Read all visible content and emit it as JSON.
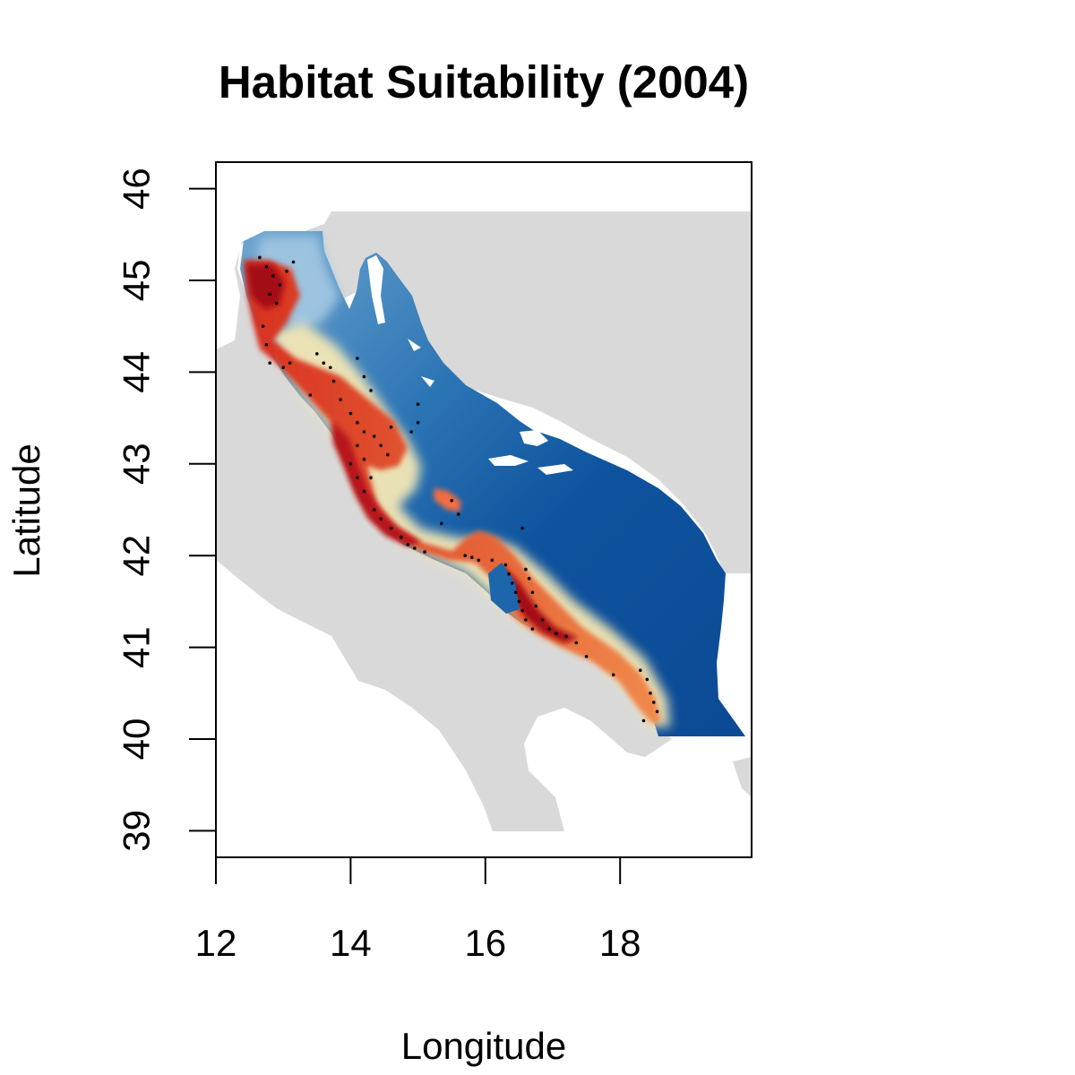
{
  "map": {
    "title": "Habitat Suitability (2004)",
    "xlabel": "Longitude",
    "ylabel": "Latitude",
    "xlim": [
      12,
      20
    ],
    "ylim": [
      38.7,
      46.3
    ],
    "x_ticks": [
      12,
      14,
      16,
      18
    ],
    "y_ticks": [
      39,
      40,
      41,
      42,
      43,
      44,
      45,
      46
    ],
    "colors": {
      "land": "#d9d9d9",
      "low_suitability": "#0b4f9b",
      "mid_suitability": "#f2ecc0",
      "high_suitability": "#a50f15"
    },
    "occurrence_points": [
      [
        12.65,
        45.25
      ],
      [
        12.75,
        45.15
      ],
      [
        12.85,
        45.05
      ],
      [
        12.95,
        44.95
      ],
      [
        12.8,
        44.85
      ],
      [
        12.9,
        44.75
      ],
      [
        13.05,
        45.1
      ],
      [
        13.15,
        45.2
      ],
      [
        12.7,
        44.5
      ],
      [
        12.75,
        44.3
      ],
      [
        12.8,
        44.1
      ],
      [
        13.0,
        44.05
      ],
      [
        13.1,
        44.1
      ],
      [
        13.5,
        44.2
      ],
      [
        13.6,
        44.1
      ],
      [
        13.7,
        44.05
      ],
      [
        13.75,
        43.9
      ],
      [
        13.85,
        43.7
      ],
      [
        14.1,
        44.15
      ],
      [
        14.2,
        43.95
      ],
      [
        14.3,
        43.8
      ],
      [
        13.4,
        43.75
      ],
      [
        14.0,
        43.55
      ],
      [
        14.1,
        43.45
      ],
      [
        14.2,
        43.35
      ],
      [
        14.35,
        43.3
      ],
      [
        14.45,
        43.2
      ],
      [
        14.1,
        43.2
      ],
      [
        14.2,
        43.05
      ],
      [
        14.3,
        42.85
      ],
      [
        14.55,
        43.1
      ],
      [
        14.6,
        43.4
      ],
      [
        14.9,
        43.35
      ],
      [
        15.0,
        43.45
      ],
      [
        15.0,
        43.65
      ],
      [
        14.0,
        43.0
      ],
      [
        14.1,
        42.85
      ],
      [
        14.2,
        42.7
      ],
      [
        14.35,
        42.5
      ],
      [
        14.45,
        42.4
      ],
      [
        14.6,
        42.3
      ],
      [
        14.75,
        42.2
      ],
      [
        14.85,
        42.12
      ],
      [
        14.95,
        42.08
      ],
      [
        15.1,
        42.04
      ],
      [
        15.35,
        42.35
      ],
      [
        15.5,
        42.6
      ],
      [
        15.6,
        42.45
      ],
      [
        15.7,
        42.0
      ],
      [
        15.8,
        41.98
      ],
      [
        15.9,
        41.95
      ],
      [
        16.1,
        41.95
      ],
      [
        16.3,
        41.9
      ],
      [
        16.35,
        41.8
      ],
      [
        16.4,
        41.7
      ],
      [
        16.45,
        41.6
      ],
      [
        16.5,
        41.5
      ],
      [
        16.55,
        41.4
      ],
      [
        16.6,
        41.85
      ],
      [
        16.65,
        41.75
      ],
      [
        16.7,
        41.6
      ],
      [
        16.75,
        41.45
      ],
      [
        16.85,
        41.3
      ],
      [
        16.95,
        41.2
      ],
      [
        17.05,
        41.15
      ],
      [
        17.2,
        41.12
      ],
      [
        17.35,
        41.05
      ],
      [
        17.5,
        40.9
      ],
      [
        16.6,
        41.3
      ],
      [
        16.7,
        41.2
      ],
      [
        16.55,
        42.3
      ],
      [
        18.3,
        40.75
      ],
      [
        18.4,
        40.65
      ],
      [
        18.45,
        40.5
      ],
      [
        18.5,
        40.4
      ],
      [
        18.55,
        40.3
      ],
      [
        18.35,
        40.2
      ],
      [
        17.9,
        40.7
      ]
    ]
  }
}
